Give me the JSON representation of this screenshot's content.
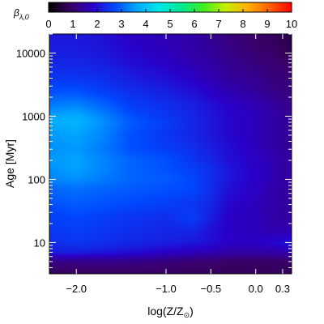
{
  "chart_data": {
    "type": "heatmap",
    "title": "",
    "colorbar": {
      "label_symbol": "β",
      "label_subscript": "λ,0",
      "range": [
        0,
        10
      ],
      "ticks": [
        "0",
        "1",
        "2",
        "3",
        "4",
        "5",
        "6",
        "7",
        "8",
        "9",
        "10"
      ],
      "colormap": [
        "#000000",
        "#3a0068",
        "#2a00c8",
        "#0048ff",
        "#00a8ff",
        "#00e8e8",
        "#00e890",
        "#40ee20",
        "#c8ee00",
        "#ffb000",
        "#ff6000",
        "#ff0000"
      ],
      "placement": "top"
    },
    "xaxis": {
      "label_main": "log(Z/Z",
      "label_sub": "⊙",
      "label_close": ")",
      "range": [
        -2.3,
        0.4
      ],
      "scale": "linear",
      "ticks": [
        {
          "value": -2.0,
          "label": "−2.0"
        },
        {
          "value": -1.0,
          "label": "−1.0"
        },
        {
          "value": -0.5,
          "label": "−0.5"
        },
        {
          "value": 0.0,
          "label": "0.0"
        },
        {
          "value": 0.3,
          "label": "0.3"
        }
      ]
    },
    "yaxis": {
      "label": "Age [Myr]",
      "range": [
        3.2,
        20000
      ],
      "scale": "log",
      "ticks": [
        {
          "value": 10,
          "label": "10"
        },
        {
          "value": 100,
          "label": "100"
        },
        {
          "value": 1000,
          "label": "1000"
        },
        {
          "value": 10000,
          "label": "10000"
        }
      ]
    },
    "grid": false,
    "logZ": [
      -2.3,
      -2.0,
      -1.7,
      -1.4,
      -1.0,
      -0.7,
      -0.5,
      -0.3,
      0.0,
      0.2,
      0.4
    ],
    "age_Myr": [
      3.2,
      5,
      7,
      10,
      15,
      25,
      40,
      70,
      100,
      150,
      200,
      300,
      500,
      800,
      1000,
      1500,
      2500,
      4000,
      7000,
      10000,
      20000
    ],
    "beta": [
      [
        0.8,
        0.8,
        0.8,
        0.8,
        0.8,
        0.8,
        0.8,
        0.8,
        0.8,
        0.8,
        0.8
      ],
      [
        1.2,
        1.2,
        1.2,
        1.2,
        1.1,
        1.0,
        1.0,
        0.9,
        0.9,
        0.9,
        0.9
      ],
      [
        2.2,
        2.2,
        2.1,
        2.0,
        1.8,
        1.7,
        1.6,
        1.5,
        1.5,
        1.5,
        1.6
      ],
      [
        2.4,
        2.5,
        2.4,
        2.3,
        2.2,
        2.1,
        2.0,
        1.8,
        1.8,
        1.9,
        2.1
      ],
      [
        2.5,
        2.6,
        2.5,
        2.4,
        2.3,
        2.3,
        2.0,
        1.8,
        1.7,
        1.6,
        1.6
      ],
      [
        2.6,
        2.7,
        2.6,
        2.5,
        2.4,
        2.6,
        2.2,
        1.8,
        1.7,
        1.5,
        1.4
      ],
      [
        2.8,
        2.9,
        2.8,
        2.7,
        2.6,
        2.5,
        2.3,
        1.9,
        1.7,
        1.5,
        1.4
      ],
      [
        3.0,
        3.1,
        3.0,
        2.9,
        2.8,
        2.7,
        2.4,
        2.0,
        1.8,
        1.5,
        1.4
      ],
      [
        3.3,
        3.4,
        3.2,
        3.0,
        2.9,
        2.7,
        2.4,
        2.1,
        1.8,
        1.6,
        1.4
      ],
      [
        3.4,
        3.6,
        3.3,
        3.0,
        2.8,
        2.6,
        2.4,
        2.1,
        1.8,
        1.6,
        1.4
      ],
      [
        3.5,
        3.6,
        3.3,
        3.0,
        2.8,
        2.5,
        2.3,
        2.0,
        1.8,
        1.6,
        1.4
      ],
      [
        3.4,
        3.5,
        3.2,
        2.8,
        2.6,
        2.4,
        2.2,
        2.0,
        1.7,
        1.5,
        1.3
      ],
      [
        3.5,
        3.6,
        3.3,
        2.8,
        2.5,
        2.3,
        2.1,
        1.9,
        1.7,
        1.5,
        1.3
      ],
      [
        3.7,
        3.8,
        3.4,
        2.9,
        2.6,
        2.3,
        2.1,
        1.9,
        1.7,
        1.5,
        1.3
      ],
      [
        3.6,
        3.7,
        3.3,
        2.8,
        2.5,
        2.3,
        2.1,
        1.9,
        1.7,
        1.5,
        1.3
      ],
      [
        3.2,
        3.3,
        3.0,
        2.6,
        2.4,
        2.2,
        2.0,
        1.8,
        1.6,
        1.4,
        1.2
      ],
      [
        2.8,
        2.8,
        2.6,
        2.4,
        2.2,
        2.0,
        1.8,
        1.6,
        1.4,
        1.2,
        1.1
      ],
      [
        2.5,
        2.5,
        2.4,
        2.2,
        2.0,
        1.8,
        1.6,
        1.4,
        1.3,
        1.1,
        1.0
      ],
      [
        2.3,
        2.3,
        2.2,
        2.0,
        1.8,
        1.6,
        1.5,
        1.3,
        1.1,
        1.0,
        0.9
      ],
      [
        2.2,
        2.2,
        2.1,
        1.9,
        1.7,
        1.5,
        1.4,
        1.2,
        1.0,
        0.9,
        0.7
      ],
      [
        2.1,
        2.1,
        2.0,
        1.8,
        1.6,
        1.5,
        1.3,
        1.1,
        0.9,
        0.8,
        0.6
      ]
    ]
  }
}
